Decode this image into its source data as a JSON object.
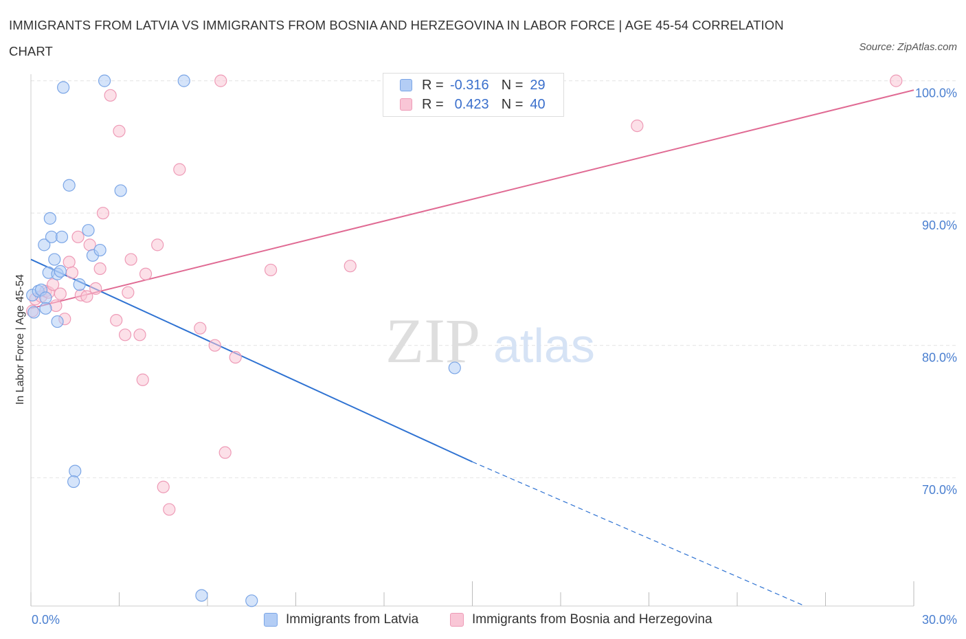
{
  "title": "IMMIGRANTS FROM LATVIA VS IMMIGRANTS FROM BOSNIA AND HERZEGOVINA IN LABOR FORCE | AGE 45-54 CORRELATION CHART",
  "source": "Source: ZipAtlas.com",
  "watermark": {
    "zip": "ZIP",
    "atlas": "atlas"
  },
  "legend_top": {
    "rows": [
      {
        "r_label": "R =",
        "r_value": "-0.316",
        "n_label": "N =",
        "n_value": "29"
      },
      {
        "r_label": "R =",
        "r_value": "0.423",
        "n_label": "N =",
        "n_value": "40"
      }
    ]
  },
  "colors": {
    "latvia_fill": "#b3cdf5",
    "latvia_stroke": "#7aa5e6",
    "latvia_line": "#2e72d2",
    "bosnia_fill": "#f9c6d6",
    "bosnia_stroke": "#ee9ab6",
    "bosnia_line": "#e06a93",
    "grid": "#e3e3e3",
    "tick_text": "#4a7fd0"
  },
  "chart_data": {
    "type": "scatter",
    "title": "IMMIGRANTS FROM LATVIA VS IMMIGRANTS FROM BOSNIA AND HERZEGOVINA IN LABOR FORCE | AGE 45-54 CORRELATION CHART",
    "xlabel": "",
    "ylabel": "In Labor Force | Age 45-54",
    "xlim": [
      0,
      30
    ],
    "ylim": [
      60.3,
      100.5
    ],
    "x_tick_labels": [
      "0.0%",
      "30.0%"
    ],
    "y_ticks": [
      70,
      80,
      90,
      100
    ],
    "y_tick_labels": [
      "70.0%",
      "80.0%",
      "90.0%",
      "100.0%"
    ],
    "grid": true,
    "legend_position": "top-center and bottom",
    "series": [
      {
        "name": "Immigrants from Latvia",
        "R": -0.316,
        "N": 29,
        "trend": {
          "x0": 0,
          "y0": 86.5,
          "x1": 15.0,
          "y1": 71.2,
          "dashed_to_x": 26.3,
          "dashed_to_y": 60.3
        },
        "points": [
          [
            0.05,
            83.8
          ],
          [
            0.1,
            82.5
          ],
          [
            0.25,
            84.1
          ],
          [
            0.35,
            84.2
          ],
          [
            0.5,
            83.6
          ],
          [
            0.5,
            82.8
          ],
          [
            0.45,
            87.6
          ],
          [
            0.6,
            85.5
          ],
          [
            0.65,
            89.6
          ],
          [
            0.7,
            88.2
          ],
          [
            0.8,
            86.5
          ],
          [
            0.9,
            85.4
          ],
          [
            0.9,
            81.8
          ],
          [
            1.0,
            85.6
          ],
          [
            1.05,
            88.2
          ],
          [
            1.1,
            99.5
          ],
          [
            1.3,
            92.1
          ],
          [
            1.5,
            70.5
          ],
          [
            1.45,
            69.7
          ],
          [
            1.65,
            84.6
          ],
          [
            1.95,
            88.7
          ],
          [
            2.1,
            86.8
          ],
          [
            2.35,
            87.2
          ],
          [
            2.5,
            100.0
          ],
          [
            3.05,
            91.7
          ],
          [
            5.2,
            100.0
          ],
          [
            5.8,
            61.1
          ],
          [
            7.5,
            60.7
          ],
          [
            14.4,
            78.3
          ]
        ]
      },
      {
        "name": "Immigrants from Bosnia and Herzegovina",
        "R": 0.423,
        "N": 40,
        "trend": {
          "x0": 0,
          "y0": 82.8,
          "x1": 30,
          "y1": 99.3
        },
        "points": [
          [
            0.05,
            82.6
          ],
          [
            0.15,
            83.5
          ],
          [
            0.35,
            83.7
          ],
          [
            0.5,
            84.1
          ],
          [
            0.6,
            84.0
          ],
          [
            0.75,
            84.6
          ],
          [
            0.85,
            83.0
          ],
          [
            1.0,
            83.9
          ],
          [
            1.15,
            82.0
          ],
          [
            1.3,
            86.3
          ],
          [
            1.4,
            85.5
          ],
          [
            1.6,
            88.2
          ],
          [
            1.7,
            83.8
          ],
          [
            1.9,
            83.7
          ],
          [
            2.0,
            87.6
          ],
          [
            2.2,
            84.3
          ],
          [
            2.35,
            85.8
          ],
          [
            2.45,
            90.0
          ],
          [
            2.7,
            98.9
          ],
          [
            2.9,
            81.9
          ],
          [
            3.0,
            96.2
          ],
          [
            3.2,
            80.8
          ],
          [
            3.3,
            84.0
          ],
          [
            3.4,
            86.5
          ],
          [
            3.7,
            80.8
          ],
          [
            3.8,
            77.4
          ],
          [
            3.9,
            85.4
          ],
          [
            4.3,
            87.6
          ],
          [
            4.5,
            69.3
          ],
          [
            4.7,
            67.6
          ],
          [
            5.05,
            93.3
          ],
          [
            5.75,
            81.3
          ],
          [
            6.25,
            80.0
          ],
          [
            6.45,
            100.0
          ],
          [
            6.6,
            71.9
          ],
          [
            6.95,
            79.1
          ],
          [
            8.15,
            85.7
          ],
          [
            10.85,
            86.0
          ],
          [
            20.6,
            96.6
          ],
          [
            29.4,
            100.0
          ]
        ]
      }
    ]
  },
  "legend_bottom": {
    "items": [
      "Immigrants from Latvia",
      "Immigrants from Bosnia and Herzegovina"
    ]
  }
}
